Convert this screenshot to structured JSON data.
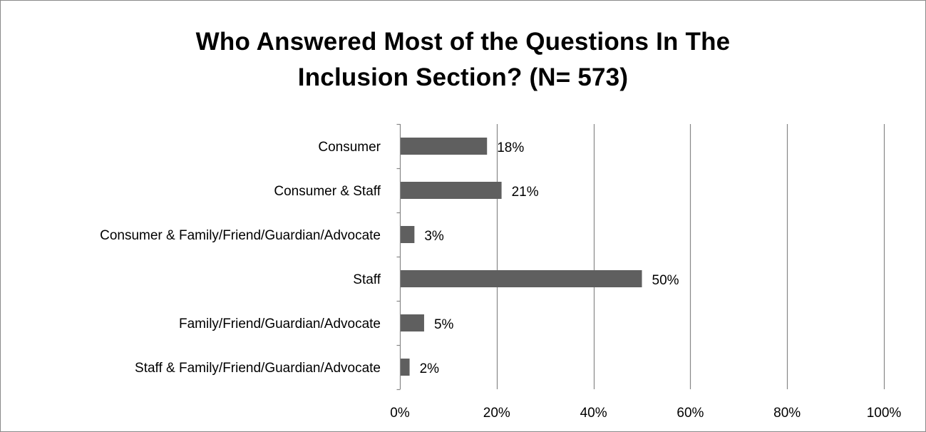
{
  "chart_data": {
    "type": "bar",
    "orientation": "horizontal",
    "title_lines": [
      "Who Answered Most of the Questions In The",
      "Inclusion Section? (N= 573)"
    ],
    "categories": [
      "Consumer",
      "Consumer & Staff",
      "Consumer & Family/Friend/Guardian/Advocate",
      "Staff",
      "Family/Friend/Guardian/Advocate",
      "Staff & Family/Friend/Guardian/Advocate"
    ],
    "values": [
      18,
      21,
      3,
      50,
      5,
      2
    ],
    "data_labels": [
      "18%",
      "21%",
      "3%",
      "50%",
      "5%",
      "2%"
    ],
    "x_ticks": [
      0,
      20,
      40,
      60,
      80,
      100
    ],
    "x_tick_labels": [
      "0%",
      "20%",
      "40%",
      "60%",
      "80%",
      "100%"
    ],
    "xlim": [
      0,
      100
    ],
    "xlabel": "",
    "ylabel": "",
    "grid": "vertical major gridlines",
    "legend": "none",
    "colors": {
      "bar": "#5f5f5f",
      "gridline": "#878787",
      "axis": "#878787",
      "frame": "#8a8a8a"
    }
  }
}
